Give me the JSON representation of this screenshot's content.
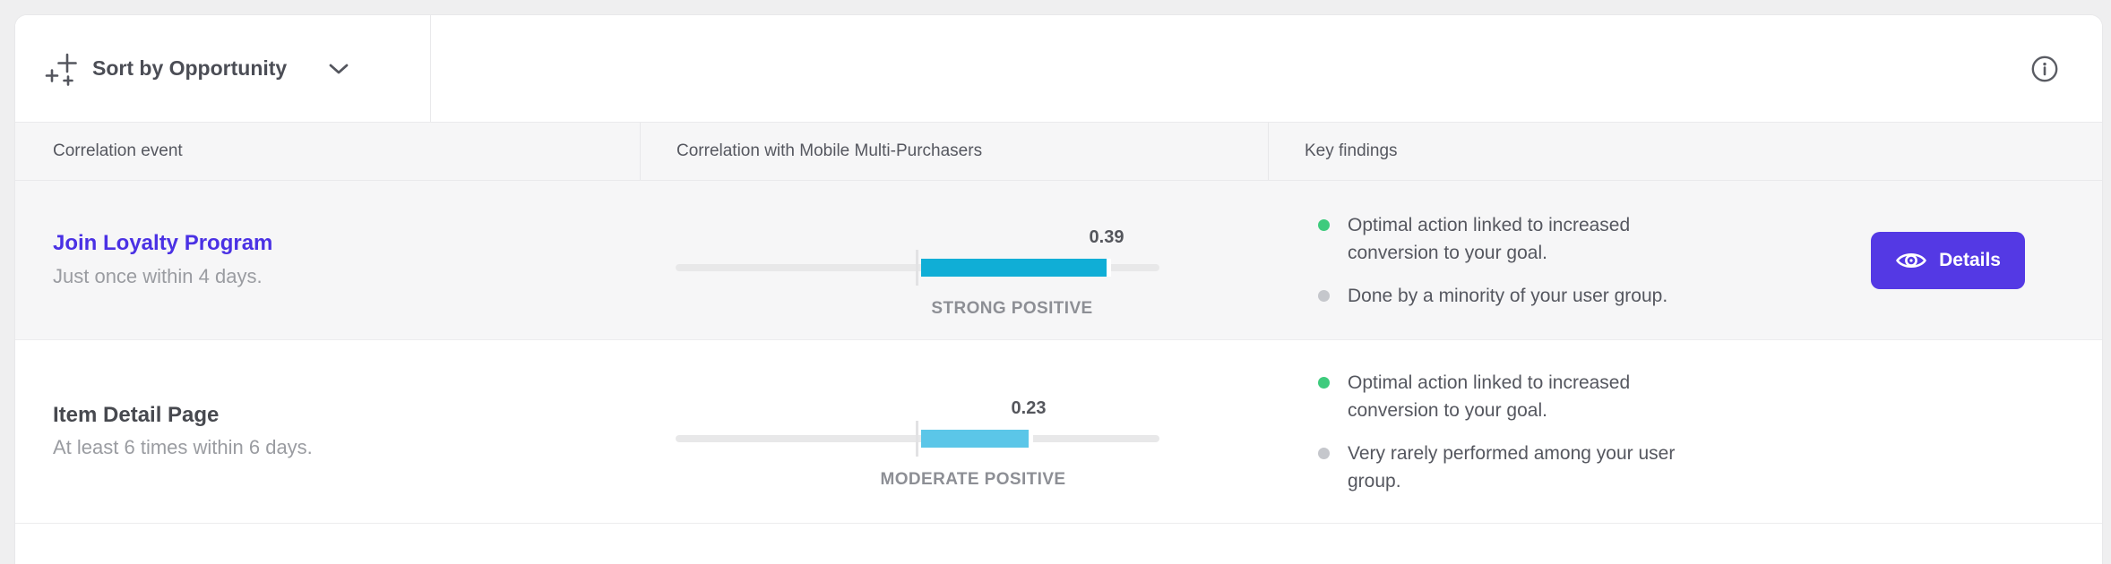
{
  "toolbar": {
    "sort_button_label": "Sort by Opportunity",
    "sort_icon": "sparkles-plus-icon",
    "chevron_icon": "chevron-down-icon",
    "info_icon": "info-circle-icon"
  },
  "table": {
    "column_headers": [
      "Correlation event",
      "Correlation with Mobile Multi-Purchasers",
      "Key findings"
    ],
    "rows": [
      {
        "title": "Join Loyalty Program",
        "title_is_link": true,
        "subtitle": "Just once within 4 days.",
        "correlation": {
          "value": "0.39",
          "numeric": 0.39,
          "strength_label": "STRONG POSITIVE",
          "bar_color": "#10aed6"
        },
        "findings": [
          {
            "bullet_color": "#3ecb7d",
            "text": "Optimal action linked to increased\nconversion to your goal."
          },
          {
            "bullet_color": "#c5c7cc",
            "text": "Done by a minority of your user group."
          }
        ],
        "details_button": "Details"
      },
      {
        "title": "Item Detail Page",
        "title_is_link": false,
        "subtitle": "At least 6 times within 6 days.",
        "correlation": {
          "value": "0.23",
          "numeric": 0.23,
          "strength_label": "MODERATE POSITIVE",
          "bar_color": "#5bc6e8"
        },
        "findings": [
          {
            "bullet_color": "#3ecb7d",
            "text": "Optimal action linked to increased\nconversion to your goal."
          },
          {
            "bullet_color": "#c5c7cc",
            "text": "Very rarely performed among your user\ngroup."
          }
        ],
        "details_button": null
      }
    ]
  },
  "colors": {
    "page_background": "#efeff0",
    "panel_background": "#ffffff",
    "header_background": "#f6f6f7",
    "hover_row_background": "#f6f6f7",
    "accent_purple": "#5439e4",
    "link_blue": "#4a31e4",
    "strong_positive_bar": "#10aed6",
    "moderate_positive_bar": "#5bc6e8",
    "positive_dot_green": "#3ecb7d",
    "neutral_dot_gray": "#c5c7cc",
    "track_gray": "#e8e8e9"
  }
}
